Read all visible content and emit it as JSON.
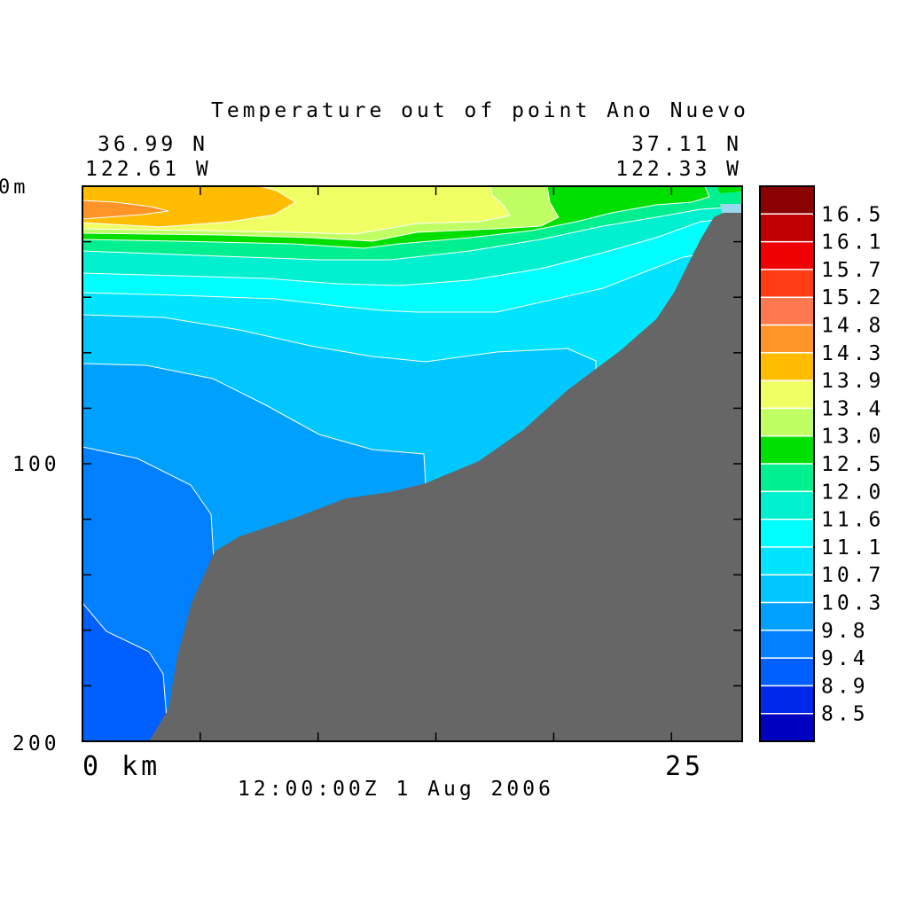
{
  "chart_data": {
    "type": "heatmap",
    "title": "Temperature out of point Ano Nuevo",
    "start_location": {
      "lat": "36.99 N",
      "lon": "122.61 W"
    },
    "end_location": {
      "lat": "37.11 N",
      "lon": "122.33 W"
    },
    "timestamp": "12:00:00Z   1 Aug 2006",
    "x_axis": {
      "label_start": "0 km",
      "label_end": "25",
      "range_km": [
        0,
        28
      ],
      "ticks_km": [
        0,
        5,
        10,
        15,
        20,
        25
      ]
    },
    "y_axis": {
      "unit_label": "0m",
      "tick_labels": [
        "100",
        "200"
      ],
      "range_m": [
        0,
        200
      ],
      "ticks_m": [
        0,
        20,
        40,
        60,
        80,
        100,
        120,
        140,
        160,
        180,
        200
      ]
    },
    "colorbar": {
      "labels": [
        "16.5",
        "16.1",
        "15.7",
        "15.2",
        "14.8",
        "14.3",
        "13.9",
        "13.4",
        "13.0",
        "12.5",
        "12.0",
        "11.6",
        "11.1",
        "10.7",
        "10.3",
        "9.8",
        "9.4",
        "8.9",
        "8.5"
      ],
      "colors": [
        "#8b0000",
        "#c00000",
        "#ee0000",
        "#ff3c14",
        "#ff7850",
        "#ff9428",
        "#ffbc00",
        "#f0ff64",
        "#c0ff64",
        "#00e000",
        "#00f090",
        "#00f0d0",
        "#00ffff",
        "#00e4ff",
        "#00c8ff",
        "#00a0ff",
        "#0080ff",
        "#0060ff",
        "#0028e8",
        "#0000c0"
      ]
    },
    "contour_levels_shown": [
      "14.3",
      "13.9",
      "13.4",
      "13.0",
      "12.5",
      "12.0",
      "11.6",
      "11.1",
      "10.7",
      "10.3",
      "9.8",
      "9.4",
      "8.9"
    ],
    "bathymetry_color": "#666666"
  }
}
